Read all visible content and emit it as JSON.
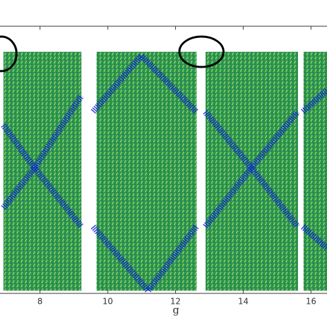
{
  "chart_data": {
    "type": "scatter",
    "xlabel": "g",
    "xlim": [
      6.82,
      16.47
    ],
    "ylim": [
      0,
      1
    ],
    "xticks": [
      8,
      10,
      12,
      14,
      16
    ],
    "series": [
      {
        "color": "#0a1fd6",
        "x": [
          6.92,
          7.84,
          9.22,
          null,
          6.92,
          7.84,
          9.22,
          null,
          9.57,
          10.99,
          12.61,
          null,
          9.57,
          11.19,
          12.61,
          null,
          12.88,
          14.24,
          15.6,
          null,
          12.88,
          14.24,
          15.6,
          null,
          15.76,
          16.46,
          null,
          15.76,
          16.46
        ],
        "y": [
          0.63,
          0.47,
          0.74,
          null,
          0.32,
          0.47,
          0.25,
          null,
          0.68,
          0.89,
          0.68,
          null,
          0.25,
          0.01,
          0.25,
          null,
          0.68,
          0.47,
          0.25,
          null,
          0.25,
          0.47,
          0.68,
          null,
          0.68,
          0.76,
          null,
          0.25,
          0.17
        ]
      }
    ]
  }
}
